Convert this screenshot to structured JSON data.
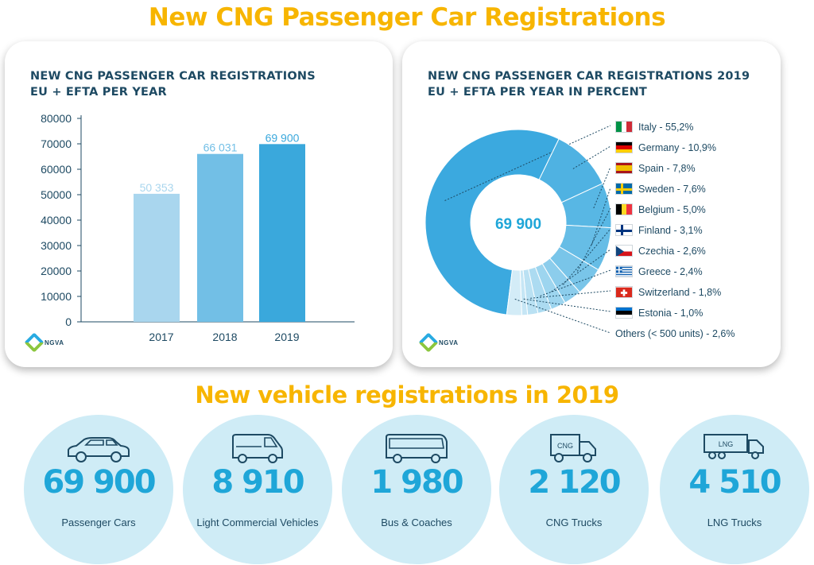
{
  "main_title": "New CNG Passenger Car Registrations",
  "section_title": "New vehicle registrations in 2019",
  "colors": {
    "accent_yellow": "#f7b500",
    "bar_2017": "#a9d6ee",
    "bar_2018": "#72bfe6",
    "bar_2019": "#3aa8dc",
    "donut": "#3ba9df"
  },
  "logo": {
    "text": "NGVA"
  },
  "chart_data": [
    {
      "type": "bar",
      "title": "NEW CNG PASSENGER CAR REGISTRATIONS",
      "subtitle": "EU + EFTA PER YEAR",
      "categories": [
        "2017",
        "2018",
        "2019"
      ],
      "values": [
        50353,
        66031,
        69900
      ],
      "data_labels": [
        "50 353",
        "66 031",
        "69 900"
      ],
      "yticks": [
        "0",
        "10000",
        "20000",
        "30000",
        "40000",
        "50000",
        "60000",
        "70000",
        "80000"
      ],
      "ylim": [
        0,
        80000
      ],
      "grid": false
    },
    {
      "type": "pie",
      "title": "NEW CNG PASSENGER CAR REGISTRATIONS 2019",
      "subtitle": "EU + EFTA PER YEAR IN PERCENT",
      "center_label": "69 900",
      "slices": [
        {
          "name": "Italy",
          "value": 55.2,
          "label": "55,2%"
        },
        {
          "name": "Germany",
          "value": 10.9,
          "label": "10,9%"
        },
        {
          "name": "Spain",
          "value": 7.8,
          "label": "7,8%"
        },
        {
          "name": "Sweden",
          "value": 7.6,
          "label": "7,6%"
        },
        {
          "name": "Belgium",
          "value": 5.0,
          "label": "5,0%"
        },
        {
          "name": "Finland",
          "value": 3.1,
          "label": "3,1%"
        },
        {
          "name": "Czechia",
          "value": 2.6,
          "label": "2,6%"
        },
        {
          "name": "Greece",
          "value": 2.4,
          "label": "2,4%"
        },
        {
          "name": "Switzerland",
          "value": 1.8,
          "label": "1,8%"
        },
        {
          "name": "Estonia",
          "value": 1.0,
          "label": "1,0%"
        },
        {
          "name": "Others (< 500 units)",
          "value": 2.6,
          "label": "2,6%"
        }
      ]
    }
  ],
  "stats": [
    {
      "value": "69 900",
      "label": "Passenger Cars",
      "icon": "car-icon"
    },
    {
      "value": "8 910",
      "label": "Light Commercial Vehicles",
      "icon": "van-icon"
    },
    {
      "value": "1 980",
      "label": "Bus & Coaches",
      "icon": "bus-icon"
    },
    {
      "value": "2 120",
      "label": "CNG Trucks",
      "icon": "cng-truck-icon",
      "icon_text": "CNG"
    },
    {
      "value": "4 510",
      "label": "LNG Trucks",
      "icon": "lng-truck-icon",
      "icon_text": "LNG"
    }
  ]
}
